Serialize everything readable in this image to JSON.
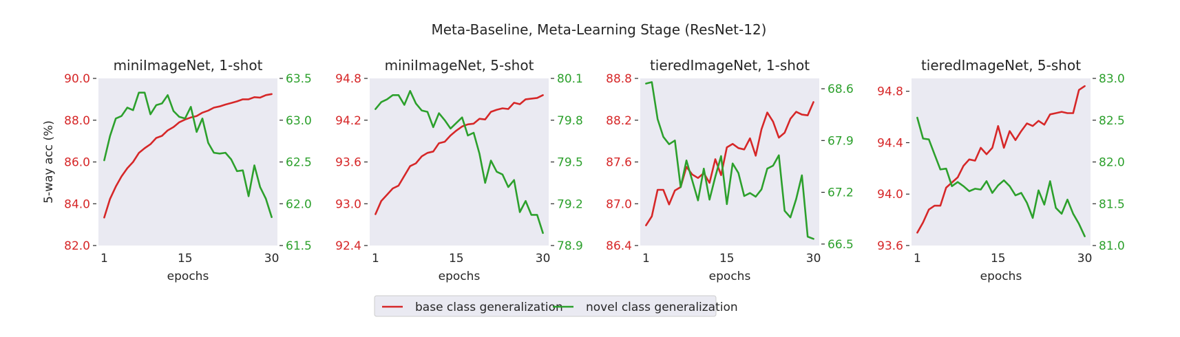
{
  "figure": {
    "title": "Meta-Baseline, Meta-Learning Stage (ResNet-12)",
    "colors": {
      "base": "#d62728",
      "novel": "#2ca02c",
      "axes_bg": "#eaeaf2",
      "text": "#262626"
    },
    "legend": {
      "items": [
        {
          "label": "base class generalization",
          "color": "#d62728"
        },
        {
          "label": "novel class generalization",
          "color": "#2ca02c"
        }
      ],
      "position": "lower center"
    }
  },
  "chart_data": [
    {
      "type": "line",
      "title": "miniImageNet, 1-shot",
      "xlabel": "epochs",
      "ylabel": "5-way acc (%)",
      "xticks": [
        1,
        15,
        30
      ],
      "xlim": [
        0,
        31
      ],
      "y_left": {
        "ticks": [
          "90.0",
          "88.0",
          "86.0",
          "84.0",
          "82.0"
        ],
        "ylim": [
          82.0,
          90.0
        ],
        "color": "#d62728"
      },
      "y_right": {
        "ticks": [
          "63.5",
          "63.0",
          "62.5",
          "62.0",
          "61.5"
        ],
        "ylim": [
          61.5,
          63.5
        ],
        "color": "#2ca02c"
      },
      "grid": false,
      "x": [
        1,
        2,
        3,
        4,
        5,
        6,
        7,
        8,
        9,
        10,
        11,
        12,
        13,
        14,
        15,
        16,
        17,
        18,
        19,
        20,
        21,
        22,
        23,
        24,
        25,
        26,
        27,
        28,
        29,
        30
      ],
      "series": [
        {
          "name": "base class generalization",
          "axis": "left",
          "color": "#d62728",
          "values": [
            83.34,
            84.23,
            84.82,
            85.31,
            85.7,
            86.0,
            86.43,
            86.66,
            86.85,
            87.15,
            87.25,
            87.51,
            87.67,
            87.9,
            88.03,
            88.13,
            88.2,
            88.36,
            88.46,
            88.6,
            88.66,
            88.75,
            88.82,
            88.9,
            89.0,
            89.0,
            89.1,
            89.08,
            89.2,
            89.25
          ]
        },
        {
          "name": "novel class generalization",
          "axis": "right",
          "color": "#2ca02c",
          "values": [
            62.52,
            62.81,
            63.02,
            63.05,
            63.15,
            63.12,
            63.33,
            63.33,
            63.07,
            63.18,
            63.2,
            63.3,
            63.11,
            63.04,
            63.02,
            63.16,
            62.86,
            63.02,
            62.73,
            62.61,
            62.6,
            62.61,
            62.53,
            62.39,
            62.4,
            62.09,
            62.46,
            62.2,
            62.06,
            61.84
          ]
        }
      ]
    },
    {
      "type": "line",
      "title": "miniImageNet, 5-shot",
      "xlabel": "epochs",
      "ylabel": "",
      "xticks": [
        1,
        15,
        30
      ],
      "xlim": [
        0,
        31
      ],
      "y_left": {
        "ticks": [
          "94.8",
          "94.2",
          "93.6",
          "93.0",
          "92.4"
        ],
        "ylim": [
          92.4,
          94.8
        ],
        "color": "#d62728"
      },
      "y_right": {
        "ticks": [
          "80.1",
          "79.8",
          "79.5",
          "79.2",
          "78.9"
        ],
        "ylim": [
          78.9,
          80.1
        ],
        "color": "#2ca02c"
      },
      "grid": false,
      "x": [
        1,
        2,
        3,
        4,
        5,
        6,
        7,
        8,
        9,
        10,
        11,
        12,
        13,
        14,
        15,
        16,
        17,
        18,
        19,
        20,
        21,
        22,
        23,
        24,
        25,
        26,
        27,
        28,
        29,
        30
      ],
      "series": [
        {
          "name": "base class generalization",
          "axis": "left",
          "color": "#d62728",
          "values": [
            92.85,
            93.04,
            93.13,
            93.22,
            93.26,
            93.4,
            93.54,
            93.58,
            93.68,
            93.73,
            93.75,
            93.87,
            93.89,
            93.98,
            94.05,
            94.11,
            94.14,
            94.15,
            94.22,
            94.21,
            94.32,
            94.35,
            94.37,
            94.36,
            94.45,
            94.43,
            94.5,
            94.51,
            94.52,
            94.56
          ]
        },
        {
          "name": "novel class generalization",
          "axis": "right",
          "color": "#2ca02c",
          "values": [
            79.88,
            79.93,
            79.95,
            79.98,
            79.98,
            79.91,
            80.01,
            79.92,
            79.87,
            79.86,
            79.75,
            79.85,
            79.8,
            79.74,
            79.78,
            79.82,
            79.69,
            79.71,
            79.56,
            79.35,
            79.51,
            79.43,
            79.41,
            79.32,
            79.37,
            79.14,
            79.22,
            79.12,
            79.12,
            78.99
          ]
        }
      ]
    },
    {
      "type": "line",
      "title": "tieredImageNet, 1-shot",
      "xlabel": "epochs",
      "ylabel": "",
      "xticks": [
        1,
        15,
        30
      ],
      "xlim": [
        0,
        31
      ],
      "y_left": {
        "ticks": [
          "88.8",
          "88.2",
          "87.6",
          "87.0",
          "86.4"
        ],
        "ylim": [
          86.4,
          88.8
        ],
        "color": "#d62728"
      },
      "y_right": {
        "ticks": [
          "68.6",
          "67.9",
          "67.2",
          "66.5"
        ],
        "ylim": [
          66.48,
          68.74
        ],
        "color": "#2ca02c"
      },
      "grid": false,
      "x": [
        1,
        2,
        3,
        4,
        5,
        6,
        7,
        8,
        9,
        10,
        11,
        12,
        13,
        14,
        15,
        16,
        17,
        18,
        19,
        20,
        21,
        22,
        23,
        24,
        25,
        26,
        27,
        28,
        29,
        30
      ],
      "series": [
        {
          "name": "base class generalization",
          "axis": "left",
          "color": "#d62728",
          "values": [
            86.69,
            86.82,
            87.2,
            87.2,
            86.99,
            87.19,
            87.24,
            87.53,
            87.42,
            87.37,
            87.44,
            87.3,
            87.64,
            87.41,
            87.81,
            87.86,
            87.8,
            87.78,
            87.94,
            87.69,
            88.07,
            88.31,
            88.18,
            87.95,
            88.02,
            88.22,
            88.32,
            88.28,
            88.27,
            88.46
          ]
        },
        {
          "name": "novel class generalization",
          "axis": "right",
          "color": "#2ca02c",
          "values": [
            68.67,
            68.69,
            68.19,
            67.95,
            67.85,
            67.9,
            67.27,
            67.63,
            67.36,
            67.09,
            67.52,
            67.1,
            67.41,
            67.69,
            67.04,
            67.59,
            67.46,
            67.15,
            67.19,
            67.14,
            67.24,
            67.52,
            67.56,
            67.7,
            66.95,
            66.86,
            67.11,
            67.43,
            66.6,
            66.57
          ]
        }
      ]
    },
    {
      "type": "line",
      "title": "tieredImageNet, 5-shot",
      "xlabel": "epochs",
      "ylabel": "",
      "xticks": [
        1,
        15,
        30
      ],
      "xlim": [
        0,
        31
      ],
      "y_left": {
        "ticks": [
          "94.8",
          "94.4",
          "94.0",
          "93.6"
        ],
        "ylim": [
          93.6,
          94.9
        ],
        "color": "#d62728"
      },
      "y_right": {
        "ticks": [
          "83.0",
          "82.5",
          "82.0",
          "81.5",
          "81.0"
        ],
        "ylim": [
          81.0,
          83.0
        ],
        "color": "#2ca02c"
      },
      "grid": false,
      "x": [
        1,
        2,
        3,
        4,
        5,
        6,
        7,
        8,
        9,
        10,
        11,
        12,
        13,
        14,
        15,
        16,
        17,
        18,
        19,
        20,
        21,
        22,
        23,
        24,
        25,
        26,
        27,
        28,
        29,
        30
      ],
      "series": [
        {
          "name": "base class generalization",
          "axis": "left",
          "color": "#d62728",
          "values": [
            93.7,
            93.78,
            93.88,
            93.91,
            93.91,
            94.05,
            94.09,
            94.13,
            94.22,
            94.27,
            94.26,
            94.36,
            94.31,
            94.36,
            94.53,
            94.36,
            94.49,
            94.42,
            94.49,
            94.55,
            94.53,
            94.57,
            94.54,
            94.62,
            94.63,
            94.64,
            94.63,
            94.63,
            94.81,
            94.84
          ]
        },
        {
          "name": "novel class generalization",
          "axis": "right",
          "color": "#2ca02c",
          "values": [
            82.53,
            82.28,
            82.27,
            82.09,
            81.91,
            81.92,
            81.71,
            81.76,
            81.71,
            81.65,
            81.68,
            81.67,
            81.77,
            81.63,
            81.72,
            81.78,
            81.71,
            81.6,
            81.63,
            81.51,
            81.33,
            81.66,
            81.49,
            81.77,
            81.45,
            81.38,
            81.55,
            81.38,
            81.26,
            81.11
          ]
        }
      ]
    }
  ]
}
